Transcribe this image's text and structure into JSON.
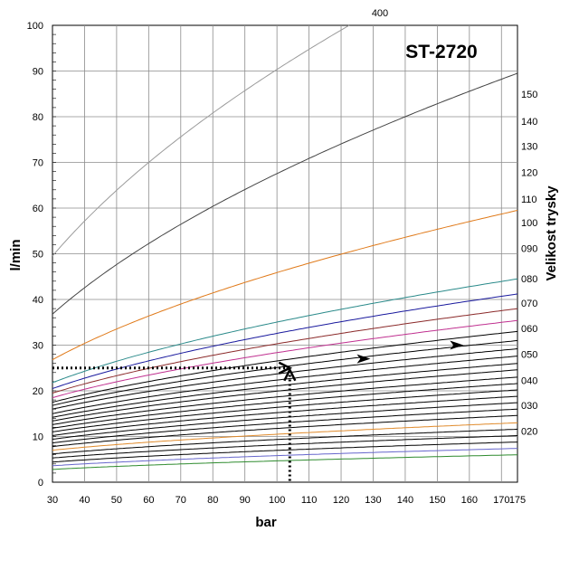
{
  "chart_data": {
    "type": "line",
    "title": "ST-2720",
    "xlabel": "bar",
    "ylabel": "l/min",
    "y2label": "Velikost trysky",
    "xlim": [
      30,
      175
    ],
    "ylim": [
      0,
      100
    ],
    "grid": true,
    "x_ticks": [
      30,
      40,
      50,
      60,
      70,
      80,
      90,
      100,
      110,
      120,
      130,
      140,
      150,
      160,
      170,
      175
    ],
    "y_ticks": [
      0,
      10,
      20,
      30,
      40,
      50,
      60,
      70,
      80,
      90,
      100
    ],
    "curve_top_label": "400",
    "right_axis": [
      {
        "label": "150",
        "y": 85
      },
      {
        "label": "140",
        "y": 79
      },
      {
        "label": "130",
        "y": 73.6
      },
      {
        "label": "120",
        "y": 67.8
      },
      {
        "label": "110",
        "y": 62
      },
      {
        "label": "100",
        "y": 56.8
      },
      {
        "label": "090",
        "y": 51.2
      },
      {
        "label": "080",
        "y": 44.6
      },
      {
        "label": "070",
        "y": 39.2
      },
      {
        "label": "060",
        "y": 33.7
      },
      {
        "label": "050",
        "y": 28
      },
      {
        "label": "040",
        "y": 22.3
      },
      {
        "label": "030",
        "y": 16.8
      },
      {
        "label": "020",
        "y": 11.2
      }
    ],
    "series": [
      {
        "values_at": [
          [
            30,
            2.8
          ],
          [
            175,
            6.0
          ]
        ],
        "color": "#2e8b2e"
      },
      {
        "values_at": [
          [
            30,
            3.6
          ],
          [
            175,
            7.4
          ]
        ],
        "color": "#6666cc"
      },
      {
        "values_at": [
          [
            30,
            4.4
          ],
          [
            175,
            8.8
          ]
        ],
        "color": "#000000"
      },
      {
        "values_at": [
          [
            30,
            5.3
          ],
          [
            175,
            10.2
          ]
        ],
        "color": "#000000"
      },
      {
        "values_at": [
          [
            30,
            6.2
          ],
          [
            175,
            11.6
          ]
        ],
        "color": "#000000"
      },
      {
        "values_at": [
          [
            30,
            7.0
          ],
          [
            175,
            13.0
          ]
        ],
        "color": "#e08a2a"
      },
      {
        "values_at": [
          [
            30,
            7.8
          ],
          [
            175,
            14.6
          ]
        ],
        "color": "#000000"
      },
      {
        "values_at": [
          [
            30,
            8.6
          ],
          [
            175,
            16.0
          ]
        ],
        "color": "#000000"
      },
      {
        "values_at": [
          [
            30,
            9.4
          ],
          [
            175,
            17.4
          ]
        ],
        "color": "#000000"
      },
      {
        "values_at": [
          [
            30,
            10.2
          ],
          [
            175,
            18.8
          ]
        ],
        "color": "#000000"
      },
      {
        "values_at": [
          [
            30,
            11.0
          ],
          [
            175,
            20.2
          ]
        ],
        "color": "#000000"
      },
      {
        "values_at": [
          [
            30,
            11.8
          ],
          [
            175,
            21.6
          ]
        ],
        "color": "#000000"
      },
      {
        "values_at": [
          [
            30,
            12.6
          ],
          [
            175,
            23.0
          ]
        ],
        "color": "#000000"
      },
      {
        "values_at": [
          [
            30,
            13.4
          ],
          [
            175,
            24.6
          ]
        ],
        "color": "#000000"
      },
      {
        "values_at": [
          [
            30,
            14.2
          ],
          [
            175,
            26.0
          ]
        ],
        "color": "#000000"
      },
      {
        "values_at": [
          [
            30,
            15.0
          ],
          [
            175,
            27.6
          ]
        ],
        "color": "#000000"
      },
      {
        "values_at": [
          [
            30,
            16.0
          ],
          [
            175,
            29.2
          ]
        ],
        "color": "#000000"
      },
      {
        "values_at": [
          [
            30,
            16.8
          ],
          [
            175,
            31.0
          ]
        ],
        "color": "#000000"
      },
      {
        "values_at": [
          [
            30,
            17.5
          ],
          [
            175,
            33.0
          ]
        ],
        "color": "#000000"
      },
      {
        "values_at": [
          [
            30,
            18.5
          ],
          [
            175,
            35.4
          ]
        ],
        "color": "#c03090"
      },
      {
        "values_at": [
          [
            30,
            19.5
          ],
          [
            175,
            38.0
          ]
        ],
        "color": "#8b2a2a"
      },
      {
        "values_at": [
          [
            30,
            20.5
          ],
          [
            175,
            41.2
          ]
        ],
        "color": "#1a1a9e"
      },
      {
        "values_at": [
          [
            30,
            21.8
          ],
          [
            175,
            44.5
          ]
        ],
        "color": "#2a8a8a"
      },
      {
        "values_at": [
          [
            30,
            26.8
          ],
          [
            175,
            59.5
          ]
        ],
        "color": "#e07a1a"
      },
      {
        "values_at": [
          [
            30,
            36.8
          ],
          [
            175,
            89.5
          ]
        ],
        "color": "#444444"
      },
      {
        "values_at": [
          [
            30,
            49.5
          ],
          [
            125,
            101.0
          ]
        ],
        "color": "#9a9a9a"
      }
    ],
    "annotation_path": {
      "points": [
        [
          30,
          25
        ],
        [
          104,
          25
        ],
        [
          104,
          0
        ]
      ],
      "style": "dotted"
    },
    "arrow_markers": [
      [
        127,
        27
      ],
      [
        156,
        30
      ]
    ]
  }
}
